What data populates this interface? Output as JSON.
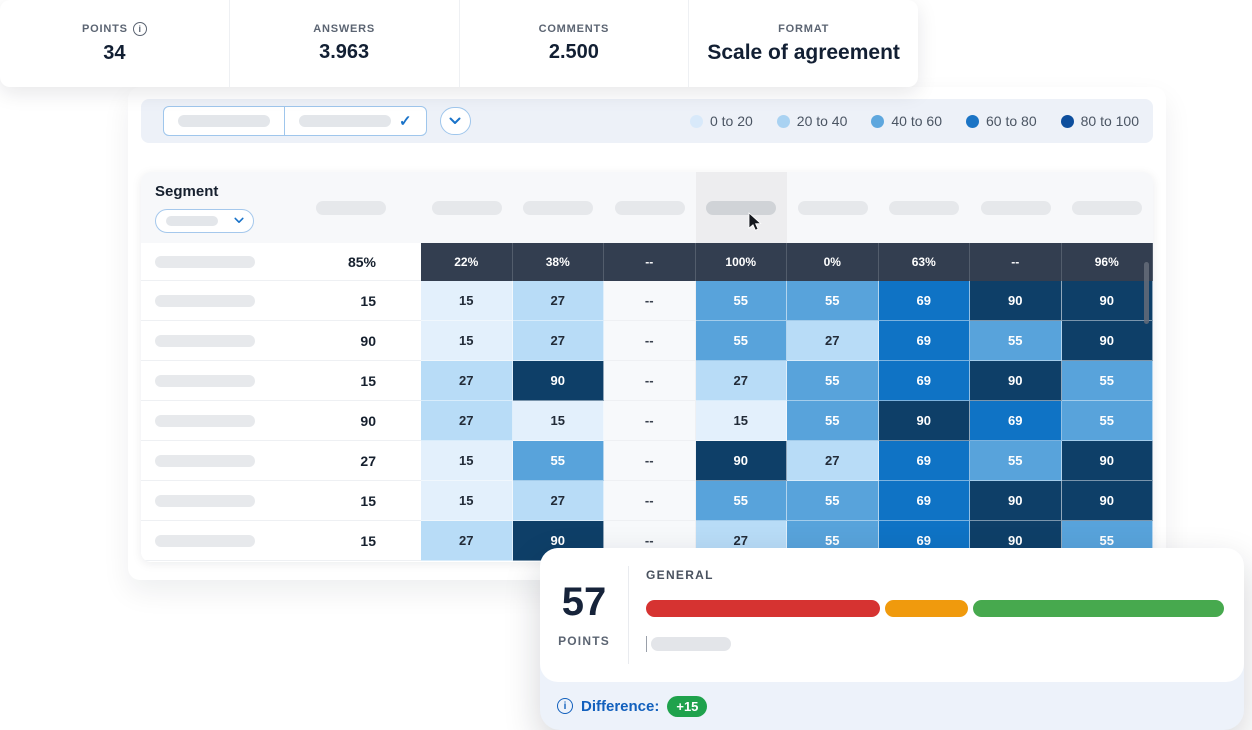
{
  "stats": {
    "items": [
      {
        "label": "POINTS",
        "value": "34",
        "has_info_icon": true
      },
      {
        "label": "ANSWERS",
        "value": "3.963",
        "has_info_icon": false
      },
      {
        "label": "COMMENTS",
        "value": "2.500",
        "has_info_icon": false
      },
      {
        "label": "FORMAT",
        "value": "Scale of agreement",
        "has_info_icon": false
      }
    ]
  },
  "filter_bar": {
    "legend": [
      {
        "label": "0 to 20",
        "color": "#d8e9fa"
      },
      {
        "label": "20 to 40",
        "color": "#a9d2f2"
      },
      {
        "label": "40 to 60",
        "color": "#5ea7de"
      },
      {
        "label": "60 to 80",
        "color": "#1b74c5"
      },
      {
        "label": "80 to 100",
        "color": "#0d4e9d"
      }
    ]
  },
  "table": {
    "segment_label": "Segment",
    "num_header_pills": 9,
    "highlighted_pill_index": 4,
    "heat_palette": {
      "b1": "#e3f0fc",
      "b2": "#b8dcf7",
      "b3": "#58a3db",
      "b4": "#0f73c5",
      "b5": "#0e3f68",
      "head_bg": "#333e50",
      "dash_bg": "#f7f9fb"
    },
    "head_row": {
      "value": "85%",
      "cells": [
        "22%",
        "38%",
        "--",
        "100%",
        "0%",
        "63%",
        "--",
        "96%"
      ]
    },
    "rows": [
      {
        "value": "15",
        "cells": [
          "15",
          "27",
          "--",
          "55",
          "55",
          "69",
          "90",
          "90"
        ]
      },
      {
        "value": "90",
        "cells": [
          "15",
          "27",
          "--",
          "55",
          "27",
          "69",
          "55",
          "90"
        ]
      },
      {
        "value": "15",
        "cells": [
          "27",
          "90",
          "--",
          "27",
          "55",
          "69",
          "90",
          "55"
        ]
      },
      {
        "value": "90",
        "cells": [
          "27",
          "15",
          "--",
          "15",
          "55",
          "90",
          "69",
          "55"
        ]
      },
      {
        "value": "27",
        "cells": [
          "15",
          "55",
          "--",
          "90",
          "27",
          "69",
          "55",
          "90"
        ]
      },
      {
        "value": "15",
        "cells": [
          "15",
          "27",
          "--",
          "55",
          "55",
          "69",
          "90",
          "90"
        ]
      },
      {
        "value": "15",
        "cells": [
          "27",
          "90",
          "--",
          "27",
          "55",
          "69",
          "90",
          "55"
        ]
      }
    ]
  },
  "popup": {
    "points_value": "57",
    "points_label": "POINTS",
    "group_label": "GENERAL",
    "bars": [
      {
        "name": "red-bar",
        "color": "#d63331",
        "weight": 236
      },
      {
        "name": "orange-bar",
        "color": "#f09a0d",
        "weight": 84
      },
      {
        "name": "green-bar",
        "color": "#47a94e",
        "weight": 253
      }
    ],
    "difference_label": "Difference:",
    "difference_value": "+15",
    "difference_badge_color": "#1fa24c"
  }
}
